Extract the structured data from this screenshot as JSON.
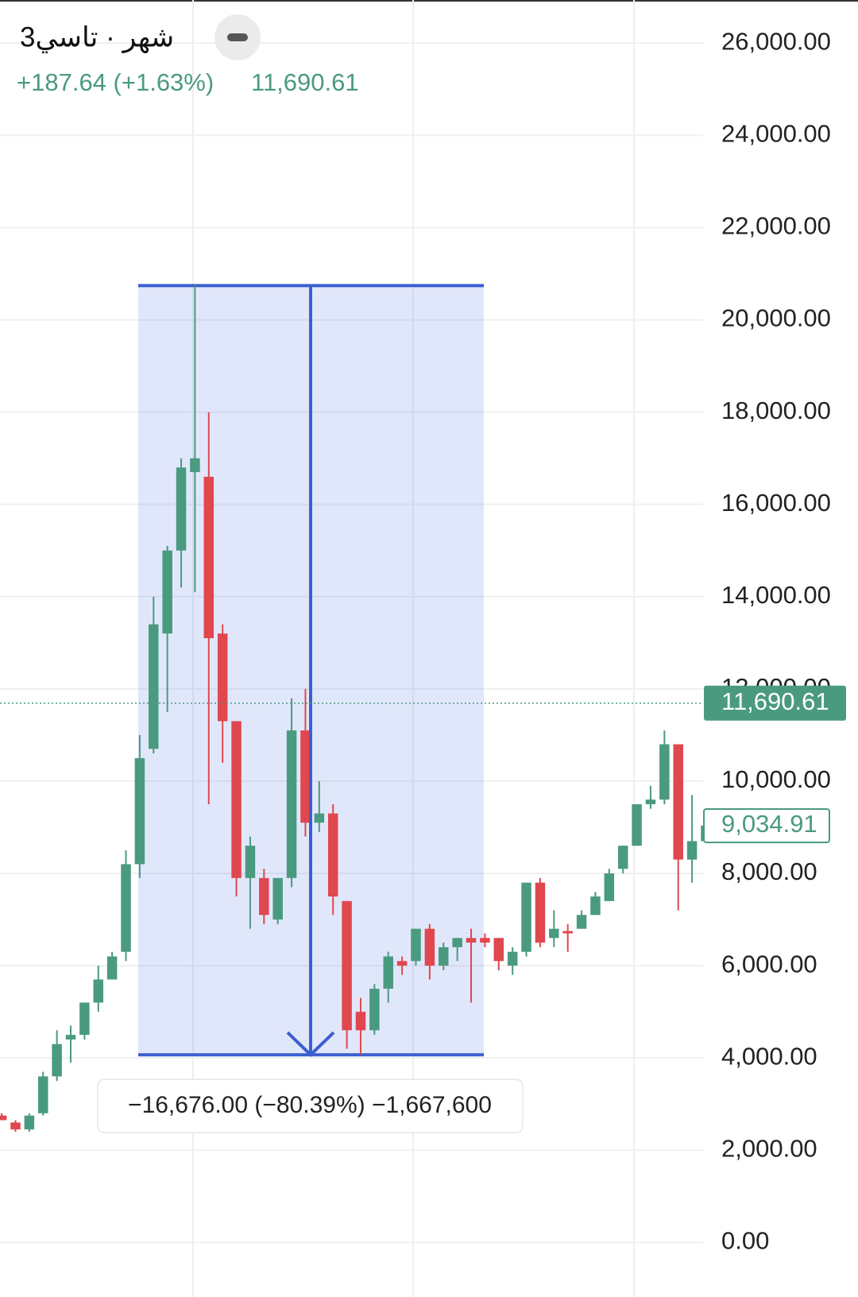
{
  "chart_data": {
    "type": "candlestick",
    "title": "3شهر · تاسي",
    "change_label": "+187.64 (+1.63%)",
    "last_price": {
      "value": 11690.61,
      "label": "11,690.61"
    },
    "marker_price": {
      "value": 9034.91,
      "label": "9,034.91"
    },
    "up_color": "#4a9a80",
    "down_color": "#e0474f",
    "categories": [
      null,
      null,
      null,
      null,
      null,
      null,
      null,
      null,
      null,
      null,
      null,
      null,
      null,
      null,
      null,
      null,
      null,
      null,
      null,
      null,
      null,
      null,
      null,
      null,
      null,
      null,
      null,
      null,
      null,
      null,
      null,
      null,
      null,
      null,
      null,
      null,
      null,
      null,
      null,
      null,
      null,
      null,
      null,
      null,
      null,
      null,
      null,
      null,
      null,
      null,
      null,
      null
    ],
    "open": [
      2750,
      2600,
      2450,
      2800,
      3600,
      4400,
      4500,
      5200,
      5700,
      6300,
      8200,
      10700,
      13200,
      15000,
      16700,
      16600,
      13200,
      11300,
      7900,
      7900,
      7000,
      7900,
      11100,
      9100,
      9300,
      7400,
      5000,
      4600,
      5500,
      6100,
      6100,
      6800,
      6000,
      6400,
      6600,
      6600,
      6600,
      6000,
      6300,
      7800,
      6600,
      6750,
      6800,
      7100,
      7400,
      8100,
      8600,
      9500,
      9600,
      10800,
      8300,
      8700
    ],
    "high": [
      2800,
      2650,
      2800,
      3700,
      4600,
      4700,
      5200,
      6000,
      6300,
      8500,
      11000,
      14000,
      15100,
      17000,
      20744,
      18000,
      13400,
      11300,
      8800,
      8100,
      7900,
      11800,
      12000,
      10000,
      9500,
      7400,
      5300,
      5600,
      6300,
      6200,
      6800,
      6900,
      6500,
      6600,
      6800,
      6700,
      6600,
      6400,
      7800,
      7900,
      7200,
      6900,
      7200,
      7600,
      8100,
      8600,
      9500,
      9900,
      11100,
      10800,
      9700,
      9100
    ],
    "low": [
      2650,
      2400,
      2400,
      2750,
      3500,
      3900,
      4400,
      5000,
      5700,
      6100,
      7900,
      10600,
      11500,
      14200,
      14100,
      9500,
      10400,
      7500,
      6800,
      6900,
      6900,
      7700,
      8800,
      8900,
      7100,
      4200,
      4068,
      4500,
      5200,
      5800,
      6000,
      5700,
      5900,
      6100,
      5200,
      6400,
      5900,
      5800,
      6200,
      6400,
      6400,
      6300,
      6800,
      7100,
      7400,
      8000,
      8600,
      9400,
      9500,
      7200,
      7800,
      8600
    ],
    "close": [
      2650,
      2450,
      2750,
      3600,
      4300,
      4500,
      5200,
      5700,
      6200,
      8200,
      10500,
      13400,
      15000,
      16800,
      17000,
      13100,
      11300,
      7900,
      8600,
      7100,
      7900,
      11100,
      9100,
      9300,
      7500,
      4600,
      4600,
      5500,
      6200,
      6000,
      6800,
      6000,
      6400,
      6600,
      6500,
      6500,
      6100,
      6300,
      7800,
      6500,
      6800,
      6700,
      7100,
      7500,
      8000,
      8600,
      9500,
      9600,
      10800,
      8300,
      8700,
      9035
    ],
    "measure": {
      "from": 20744,
      "to": 4068,
      "label": "−16,676.00 (−80.39%) −1,667,600"
    },
    "ylim": [
      -1183,
      26935
    ],
    "yticks": [
      {
        "value": 0,
        "label": "0.00"
      },
      {
        "value": 2000,
        "label": "2,000.00"
      },
      {
        "value": 4000,
        "label": "4,000.00"
      },
      {
        "value": 6000,
        "label": "6,000.00"
      },
      {
        "value": 8000,
        "label": "8,000.00"
      },
      {
        "value": 10000,
        "label": "10,000.00"
      },
      {
        "value": 12000,
        "label": "12,000.00"
      },
      {
        "value": 14000,
        "label": "14,000.00"
      },
      {
        "value": 16000,
        "label": "16,000.00"
      },
      {
        "value": 18000,
        "label": "18,000.00"
      },
      {
        "value": 20000,
        "label": "20,000.00"
      },
      {
        "value": 22000,
        "label": "22,000.00"
      },
      {
        "value": 24000,
        "label": "24,000.00"
      },
      {
        "value": 26000,
        "label": "26,000.00"
      }
    ],
    "grid": true
  }
}
